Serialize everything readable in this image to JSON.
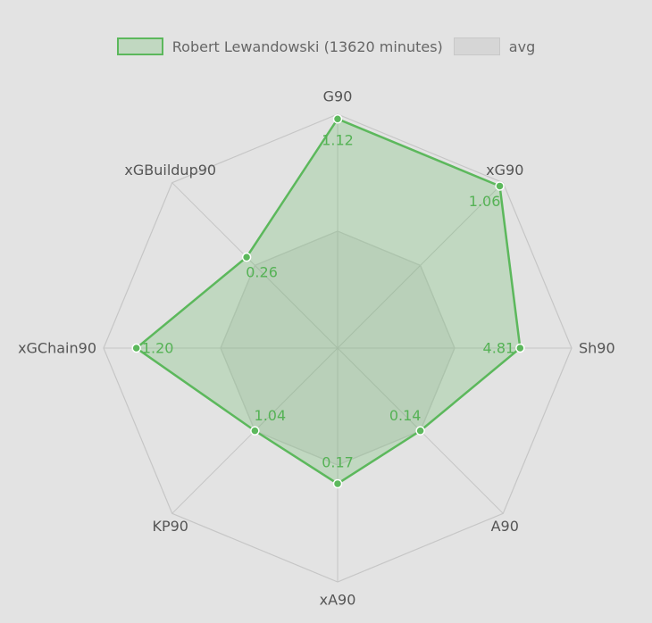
{
  "colors": {
    "series_line": "#5cb85c",
    "series_fill": "rgba(92,184,92,0.25)",
    "avg_line": "#c8c8c8",
    "avg_fill": "rgba(160,160,160,0.15)",
    "grid": "#c6c6c6",
    "background": "#e3e3e3"
  },
  "chart_data": {
    "type": "radar",
    "axes": [
      "G90",
      "xG90",
      "Sh90",
      "A90",
      "xA90",
      "KP90",
      "xGChain90",
      "xGBuildup90"
    ],
    "rlim": [
      0,
      1
    ],
    "grid_levels": 2,
    "series": [
      {
        "name": "Robert Lewandowski (13620 minutes)",
        "labels": [
          "1.12",
          "1.06",
          "4.81",
          "0.14",
          "0.17",
          "1.04",
          "1.20",
          "0.26"
        ],
        "values": [
          0.98,
          0.98,
          0.78,
          0.5,
          0.58,
          0.5,
          0.86,
          0.55
        ]
      },
      {
        "name": "avg",
        "values": [
          0.5,
          0.5,
          0.5,
          0.5,
          0.5,
          0.5,
          0.5,
          0.5
        ]
      }
    ]
  }
}
